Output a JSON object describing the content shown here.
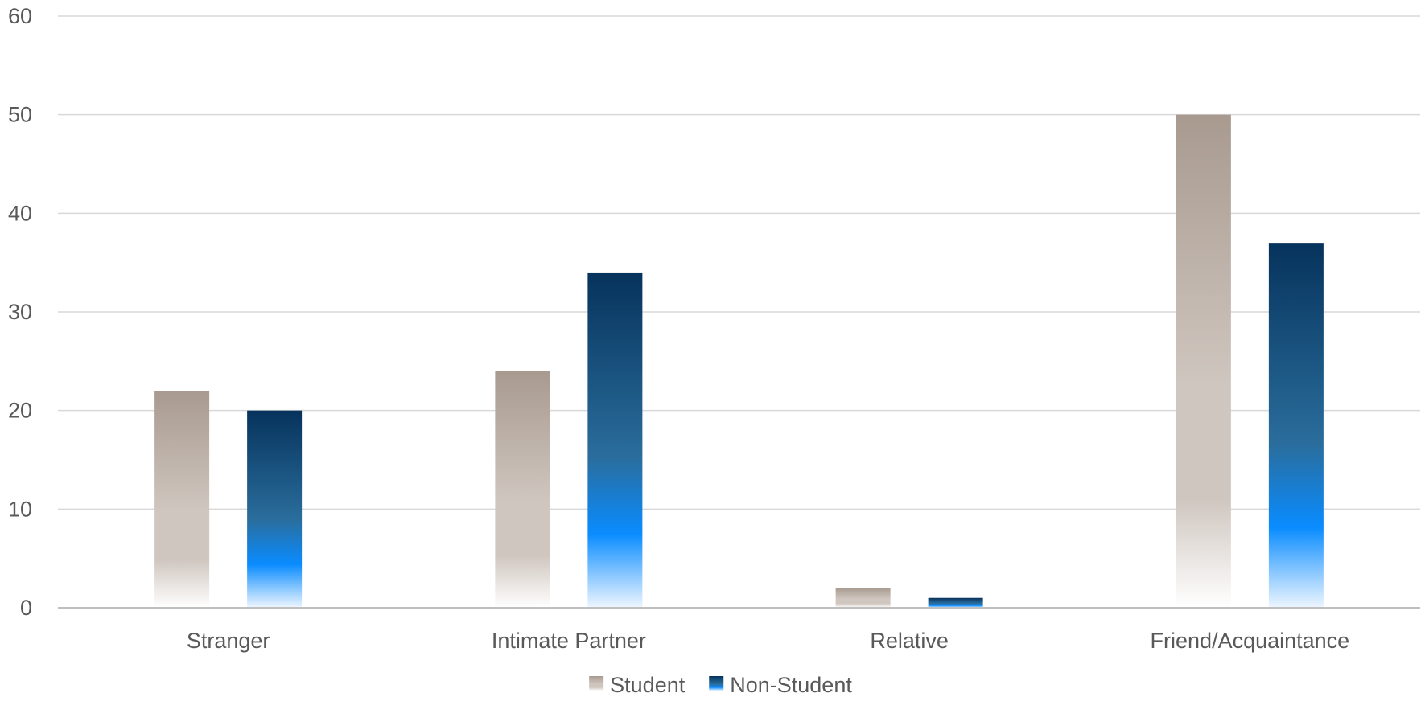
{
  "chart_data": {
    "type": "bar",
    "categories": [
      "Stranger",
      "Intimate Partner",
      "Relative",
      "Friend/Acquaintance"
    ],
    "series": [
      {
        "name": "Student",
        "values": [
          22,
          24,
          2,
          50
        ],
        "color_top": "#a89a8f",
        "color_mid": "#cfc6bf",
        "color_bottom": "#ffffff"
      },
      {
        "name": "Non-Student",
        "values": [
          20,
          34,
          1,
          37
        ],
        "color_top": "#06335c",
        "color_mid": "#0a8cff",
        "color_bottom": "#eef6ff"
      }
    ],
    "title": "",
    "xlabel": "",
    "ylabel": "",
    "ylim": [
      0,
      60
    ],
    "yticks": [
      0,
      10,
      20,
      30,
      40,
      50,
      60
    ],
    "grid": true,
    "legend_position": "bottom"
  },
  "colors": {
    "gridline": "#d9d9d9",
    "axis_line": "#bfbfbf",
    "text": "#595959"
  }
}
